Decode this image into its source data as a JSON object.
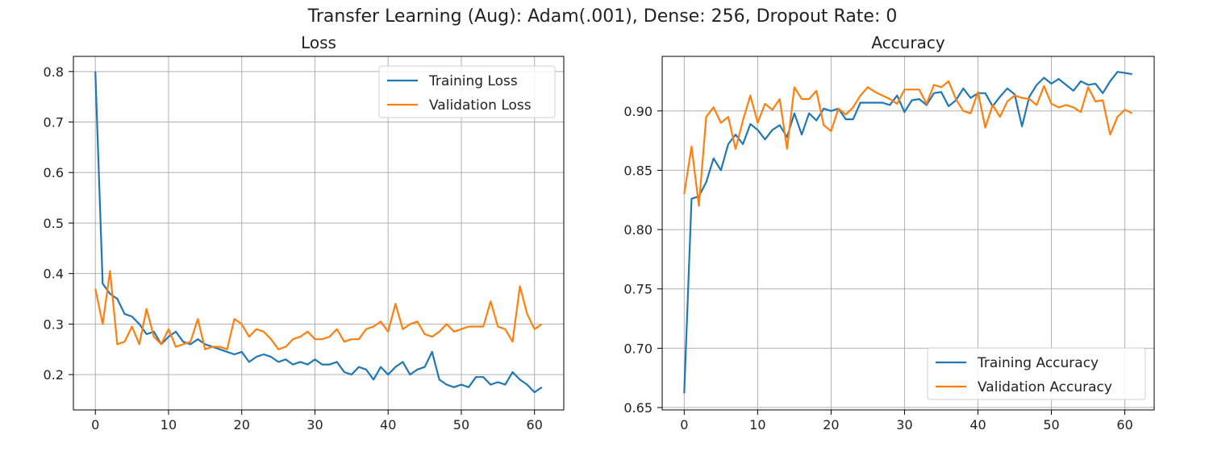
{
  "suptitle": "Transfer Learning (Aug): Adam(.001), Dense: 256, Dropout Rate: 0",
  "colors": {
    "training": "#1f77b4",
    "validation": "#ff7f0e",
    "grid": "#b0b0b0",
    "axes": "#000000"
  },
  "chart_data": [
    {
      "type": "line",
      "title": "Loss",
      "xlabel": "",
      "ylabel": "",
      "xlim": [
        -3,
        64
      ],
      "ylim": [
        0.13,
        0.83
      ],
      "xticks": [
        0,
        10,
        20,
        30,
        40,
        50,
        60
      ],
      "yticks": [
        0.2,
        0.3,
        0.4,
        0.5,
        0.6,
        0.7,
        0.8
      ],
      "ytick_labels": [
        "0.2",
        "0.3",
        "0.4",
        "0.5",
        "0.6",
        "0.7",
        "0.8"
      ],
      "grid": true,
      "legend_position": "top-right",
      "series": [
        {
          "name": "Training Loss",
          "color": "#1f77b4",
          "values": [
            0.8,
            0.38,
            0.36,
            0.35,
            0.32,
            0.315,
            0.3,
            0.28,
            0.285,
            0.26,
            0.275,
            0.285,
            0.265,
            0.26,
            0.27,
            0.26,
            0.255,
            0.25,
            0.245,
            0.24,
            0.245,
            0.225,
            0.235,
            0.24,
            0.235,
            0.225,
            0.23,
            0.22,
            0.225,
            0.22,
            0.23,
            0.22,
            0.22,
            0.225,
            0.205,
            0.2,
            0.215,
            0.21,
            0.19,
            0.215,
            0.2,
            0.215,
            0.225,
            0.2,
            0.21,
            0.215,
            0.245,
            0.19,
            0.18,
            0.175,
            0.18,
            0.175,
            0.195,
            0.195,
            0.18,
            0.185,
            0.18,
            0.205,
            0.19,
            0.18,
            0.165,
            0.175
          ]
        },
        {
          "name": "Validation Loss",
          "color": "#ff7f0e",
          "values": [
            0.37,
            0.3,
            0.405,
            0.26,
            0.265,
            0.295,
            0.26,
            0.33,
            0.275,
            0.26,
            0.29,
            0.255,
            0.26,
            0.265,
            0.31,
            0.25,
            0.255,
            0.255,
            0.25,
            0.31,
            0.3,
            0.275,
            0.29,
            0.285,
            0.27,
            0.25,
            0.255,
            0.27,
            0.275,
            0.285,
            0.27,
            0.27,
            0.275,
            0.29,
            0.265,
            0.27,
            0.27,
            0.29,
            0.295,
            0.305,
            0.285,
            0.34,
            0.29,
            0.3,
            0.305,
            0.28,
            0.275,
            0.285,
            0.3,
            0.285,
            0.29,
            0.295,
            0.295,
            0.295,
            0.345,
            0.295,
            0.29,
            0.265,
            0.375,
            0.32,
            0.29,
            0.3
          ]
        }
      ]
    },
    {
      "type": "line",
      "title": "Accuracy",
      "xlabel": "",
      "ylabel": "",
      "xlim": [
        -3,
        64
      ],
      "ylim": [
        0.648,
        0.946
      ],
      "xticks": [
        0,
        10,
        20,
        30,
        40,
        50,
        60
      ],
      "yticks": [
        0.65,
        0.7,
        0.75,
        0.8,
        0.85,
        0.9
      ],
      "ytick_labels": [
        "0.65",
        "0.70",
        "0.75",
        "0.80",
        "0.85",
        "0.90"
      ],
      "grid": true,
      "legend_position": "bottom-right",
      "series": [
        {
          "name": "Training Accuracy",
          "color": "#1f77b4",
          "values": [
            0.662,
            0.826,
            0.828,
            0.84,
            0.86,
            0.85,
            0.872,
            0.88,
            0.872,
            0.889,
            0.884,
            0.876,
            0.884,
            0.888,
            0.878,
            0.898,
            0.88,
            0.898,
            0.892,
            0.902,
            0.9,
            0.902,
            0.893,
            0.893,
            0.907,
            0.907,
            0.907,
            0.907,
            0.905,
            0.913,
            0.899,
            0.909,
            0.91,
            0.905,
            0.915,
            0.916,
            0.904,
            0.909,
            0.919,
            0.911,
            0.915,
            0.915,
            0.904,
            0.912,
            0.919,
            0.914,
            0.887,
            0.912,
            0.922,
            0.928,
            0.923,
            0.927,
            0.922,
            0.917,
            0.925,
            0.922,
            0.923,
            0.915,
            0.925,
            0.933,
            0.932,
            0.931
          ]
        },
        {
          "name": "Validation Accuracy",
          "color": "#ff7f0e",
          "values": [
            0.83,
            0.87,
            0.82,
            0.895,
            0.903,
            0.89,
            0.895,
            0.868,
            0.892,
            0.913,
            0.89,
            0.906,
            0.901,
            0.91,
            0.868,
            0.92,
            0.91,
            0.91,
            0.917,
            0.888,
            0.883,
            0.902,
            0.897,
            0.903,
            0.913,
            0.92,
            0.916,
            0.913,
            0.91,
            0.906,
            0.918,
            0.918,
            0.918,
            0.906,
            0.922,
            0.92,
            0.925,
            0.91,
            0.9,
            0.898,
            0.916,
            0.886,
            0.905,
            0.895,
            0.908,
            0.913,
            0.911,
            0.91,
            0.905,
            0.921,
            0.906,
            0.903,
            0.905,
            0.903,
            0.899,
            0.92,
            0.908,
            0.909,
            0.88,
            0.895,
            0.901,
            0.898
          ]
        }
      ]
    }
  ]
}
